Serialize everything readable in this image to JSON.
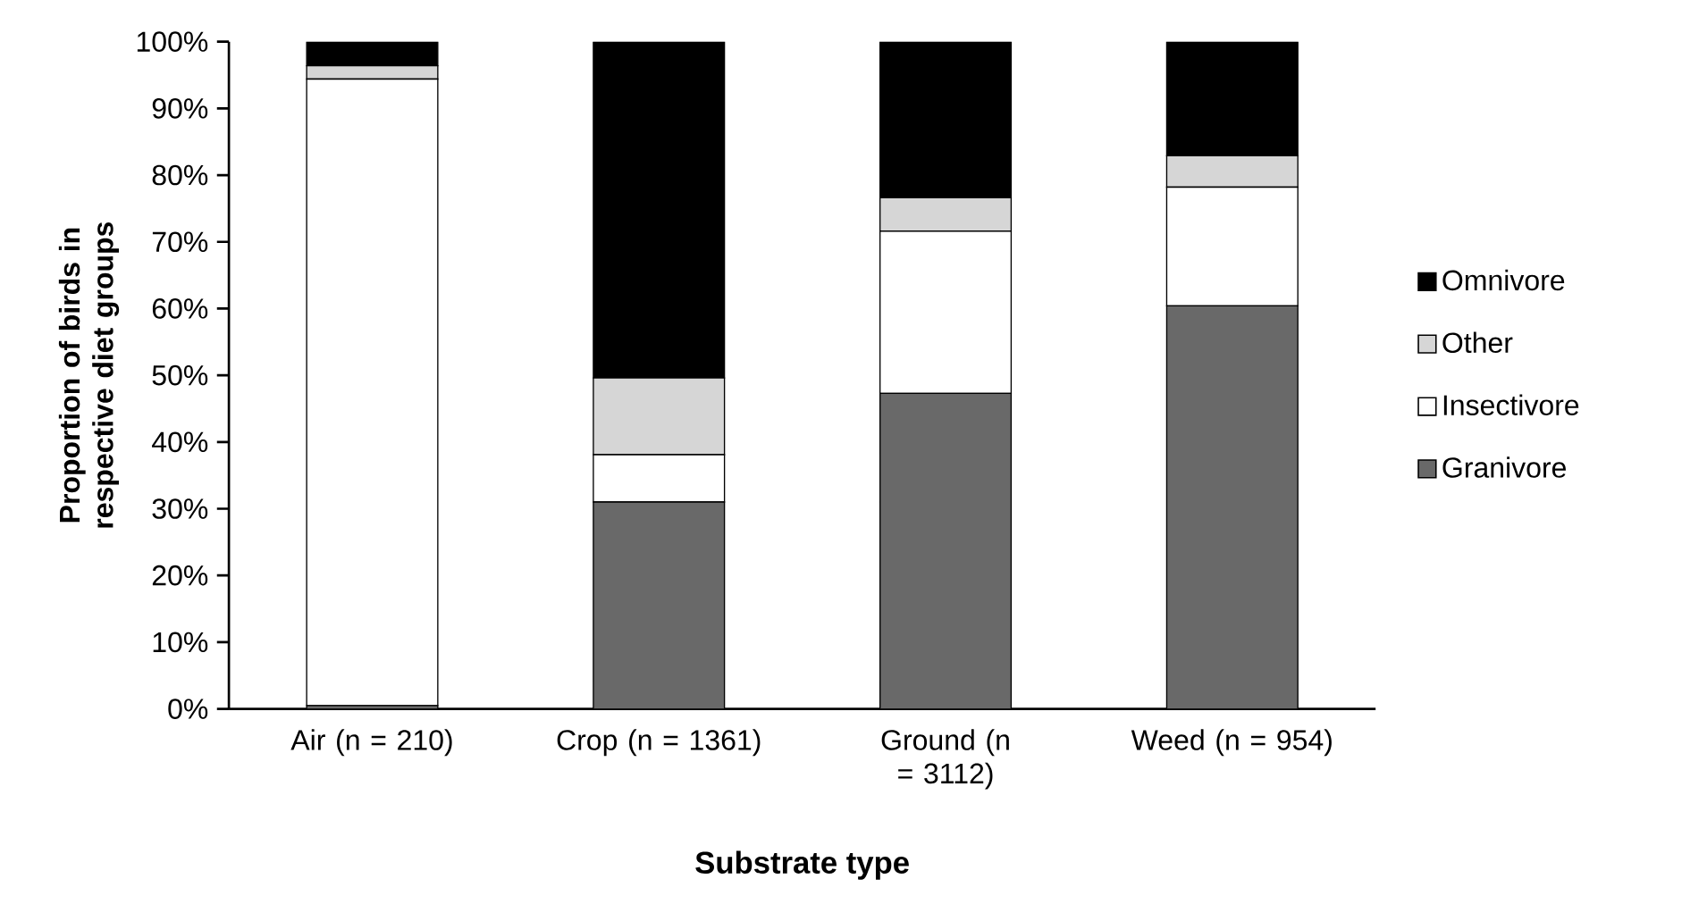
{
  "chart_data": {
    "type": "bar",
    "stacked": true,
    "xlabel": "Substrate type",
    "ylabel": "Proportion of birds in respective diet groups",
    "categories": [
      "Air (n = 210)",
      "Crop (n = 1361)",
      "Ground (n = 3112)",
      "Weed (n = 954)"
    ],
    "series": [
      {
        "name": "Granivore",
        "color": "#696969",
        "values": [
          0.5,
          31.0,
          47.3,
          60.4
        ]
      },
      {
        "name": "Insectivore",
        "color": "#ffffff",
        "values": [
          93.9,
          7.1,
          24.3,
          17.8
        ]
      },
      {
        "name": "Other",
        "color": "#d6d6d6",
        "values": [
          2.0,
          11.5,
          5.0,
          4.7
        ]
      },
      {
        "name": "Omnivore",
        "color": "#000000",
        "values": [
          3.6,
          50.4,
          23.4,
          17.1
        ]
      }
    ],
    "ylim": [
      0,
      100
    ],
    "yticks": [
      {
        "value": 0,
        "label": "0%"
      },
      {
        "value": 10,
        "label": "10%"
      },
      {
        "value": 20,
        "label": "20%"
      },
      {
        "value": 30,
        "label": "30%"
      },
      {
        "value": 40,
        "label": "40%"
      },
      {
        "value": 50,
        "label": "50%"
      },
      {
        "value": 60,
        "label": "60%"
      },
      {
        "value": 70,
        "label": "70%"
      },
      {
        "value": 80,
        "label": "80%"
      },
      {
        "value": 90,
        "label": "90%"
      },
      {
        "value": 100,
        "label": "100%"
      }
    ],
    "legend": "right"
  }
}
